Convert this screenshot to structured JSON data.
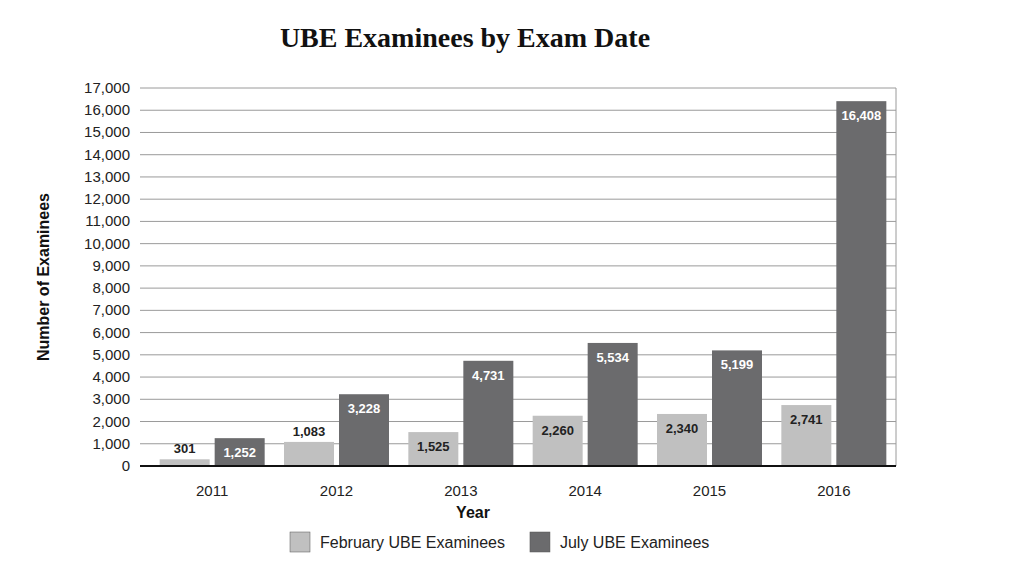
{
  "chart_data": {
    "type": "bar",
    "title": "UBE Examinees by Exam Date",
    "x_label": "Year",
    "y_label": "Number of Examinees",
    "categories": [
      "2011",
      "2012",
      "2013",
      "2014",
      "2015",
      "2016"
    ],
    "series": [
      {
        "name": "February UBE Examinees",
        "color": "#c0c0c0",
        "values": [
          301,
          1083,
          1525,
          2260,
          2340,
          2741
        ],
        "value_labels": [
          "301",
          "1,083",
          "1,525",
          "2,260",
          "2,340",
          "2,741"
        ]
      },
      {
        "name": "July UBE Examinees",
        "color": "#6b6b6d",
        "values": [
          1252,
          3228,
          4731,
          5534,
          5199,
          16408
        ],
        "value_labels": [
          "1,252",
          "3,228",
          "4,731",
          "5,534",
          "5,199",
          "16,408"
        ]
      }
    ],
    "ylim": [
      0,
      17000
    ],
    "yticks": [
      0,
      {
        "value": 1000,
        "label": "1,000"
      },
      {
        "value": 2000,
        "label": "2,000"
      },
      {
        "value": 3000,
        "label": "3,000"
      },
      {
        "value": 4000,
        "label": "4,000"
      },
      {
        "value": 5000,
        "label": "5,000"
      },
      {
        "value": 6000,
        "label": "6,000"
      },
      {
        "value": 7000,
        "label": "7,000"
      },
      {
        "value": 8000,
        "label": "8,000"
      },
      {
        "value": 9000,
        "label": "9,000"
      },
      {
        "value": 10000,
        "label": "10,000"
      },
      {
        "value": 11000,
        "label": "11,000"
      },
      {
        "value": 12000,
        "label": "12,000"
      },
      {
        "value": 13000,
        "label": "13,000"
      },
      {
        "value": 14000,
        "label": "14,000"
      },
      {
        "value": 15000,
        "label": "15,000"
      },
      {
        "value": 16000,
        "label": "16,000"
      },
      {
        "value": 17000,
        "label": "17,000"
      }
    ],
    "grid": true,
    "legend": "bottom",
    "data_labels": true
  }
}
